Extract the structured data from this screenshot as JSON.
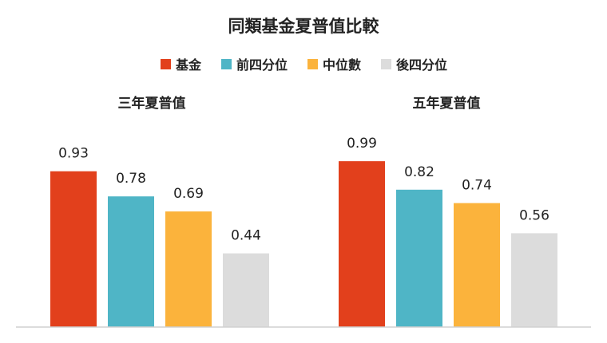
{
  "chart_data": {
    "type": "bar",
    "title": "同類基金夏普值比較",
    "series": [
      {
        "name": "基金",
        "color": "#e2401c"
      },
      {
        "name": "前四分位",
        "color": "#4fb5c6"
      },
      {
        "name": "中位數",
        "color": "#fbb33c"
      },
      {
        "name": "後四分位",
        "color": "#dcdcdc"
      }
    ],
    "groups": [
      {
        "title": "三年夏普值",
        "values": [
          0.93,
          0.78,
          0.69,
          0.44
        ],
        "labels": [
          "0.93",
          "0.78",
          "0.69",
          "0.44"
        ]
      },
      {
        "title": "五年夏普值",
        "values": [
          0.99,
          0.82,
          0.74,
          0.56
        ],
        "labels": [
          "0.99",
          "0.82",
          "0.74",
          "0.56"
        ]
      }
    ],
    "ylim": [
      0,
      1
    ],
    "grid": false,
    "legend_position": "top-center"
  }
}
